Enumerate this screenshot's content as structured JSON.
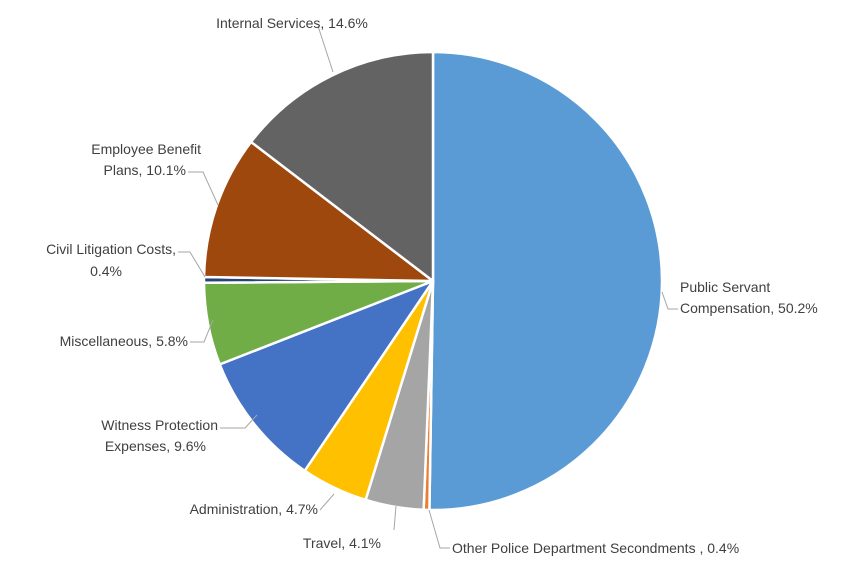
{
  "chart_data": {
    "type": "pie",
    "title": "",
    "start_angle": "12 o'clock",
    "direction": "clockwise",
    "legend": "none",
    "slices": [
      {
        "label": "Public Servant Compensation",
        "value": 50.2,
        "text": [
          "Public Servant",
          "Compensation, 50.2%"
        ],
        "color": "#5B9BD5"
      },
      {
        "label": "Other Police Department Secondments ",
        "value": 0.4,
        "text": [
          "Other Police Department Secondments , 0.4%"
        ],
        "color": "#ED7D31"
      },
      {
        "label": "Travel",
        "value": 4.1,
        "text": [
          "Travel, 4.1%"
        ],
        "color": "#A5A5A5"
      },
      {
        "label": "Administration",
        "value": 4.7,
        "text": [
          "Administration, 4.7%"
        ],
        "color": "#FFC000"
      },
      {
        "label": "Witness Protection Expenses",
        "value": 9.6,
        "text": [
          "Witness Protection",
          "Expenses, 9.6%"
        ],
        "color": "#4472C4"
      },
      {
        "label": "Miscellaneous",
        "value": 5.8,
        "text": [
          "Miscellaneous, 5.8%"
        ],
        "color": "#70AD47"
      },
      {
        "label": "Civil Litigation Costs",
        "value": 0.4,
        "text": [
          "Civil Litigation Costs,",
          "0.4%"
        ],
        "color": "#264478"
      },
      {
        "label": "Employee Benefit Plans",
        "value": 10.1,
        "text": [
          "Employee Benefit",
          "Plans, 10.1%"
        ],
        "color": "#9E480E"
      },
      {
        "label": "Internal Services",
        "value": 14.6,
        "text": [
          "Internal Services, 14.6%"
        ],
        "color": "#636363"
      }
    ]
  }
}
